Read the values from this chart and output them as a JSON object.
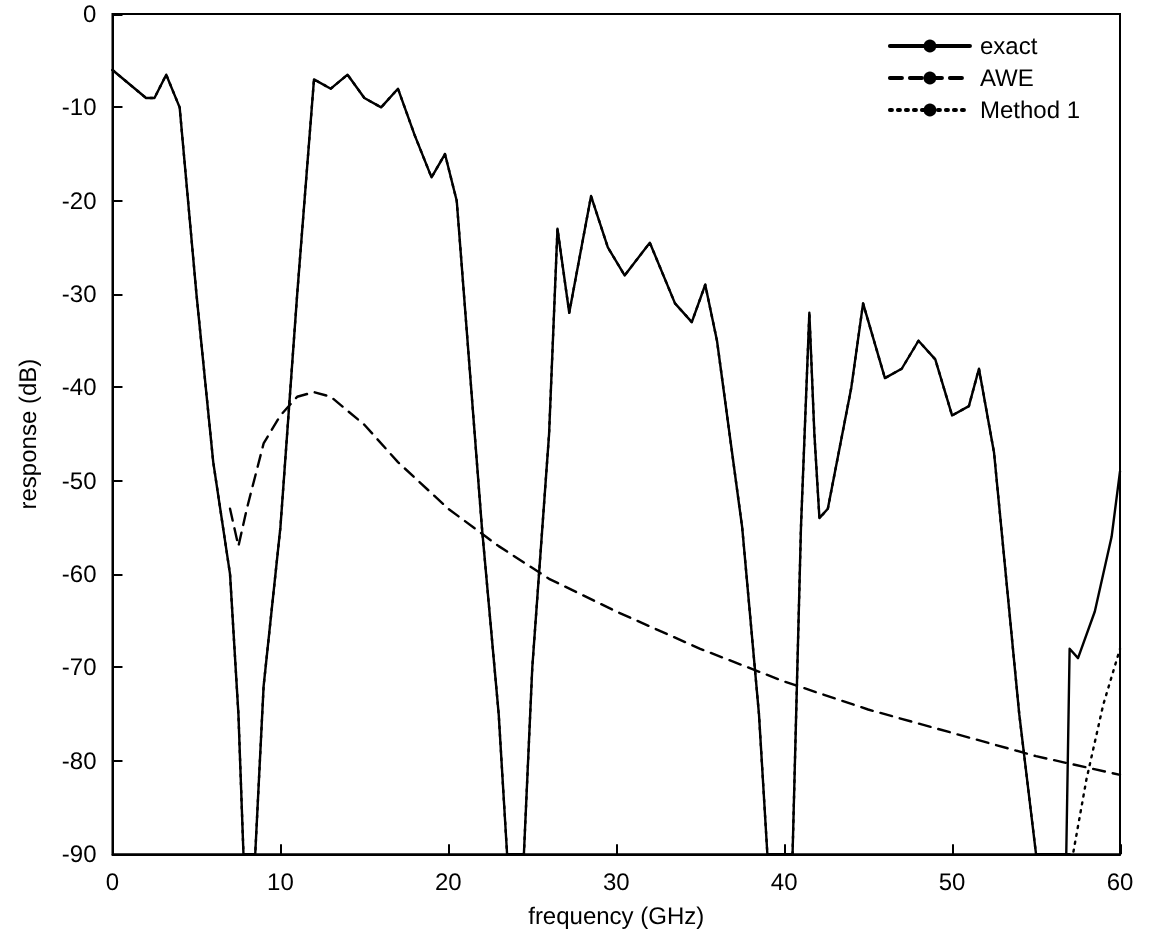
{
  "chart_data": {
    "type": "line",
    "xlabel": "frequency (GHz)",
    "ylabel": "response (dB)",
    "xlim": [
      0,
      60
    ],
    "ylim": [
      -90,
      0
    ],
    "xticks": [
      0,
      10,
      20,
      30,
      40,
      50,
      60
    ],
    "yticks": [
      -90,
      -80,
      -70,
      -60,
      -50,
      -40,
      -30,
      -20,
      -10,
      0
    ],
    "grid": false,
    "legend": "top right",
    "marker": "none",
    "series": [
      {
        "name": "Method 1",
        "color": "#000000",
        "line_style": "dotted",
        "x": [
          0,
          1,
          2,
          2.5,
          3.2,
          4,
          5,
          6,
          7,
          7.5,
          7.8,
          8.5,
          9,
          10,
          11,
          12,
          13,
          14,
          15,
          16,
          17,
          18,
          19,
          19.8,
          20.5,
          22,
          23,
          23.5,
          24.5,
          25,
          26,
          26.5,
          27.2,
          28.5,
          29.5,
          30.5,
          32,
          33.5,
          34.5,
          35.3,
          36,
          37.5,
          38.5,
          39,
          40.5,
          41,
          41.5,
          41.8,
          42.1,
          42.6,
          44,
          44.7,
          46,
          47,
          48,
          49,
          50,
          51,
          51.6,
          52.5,
          54,
          55,
          57.2,
          58,
          59,
          60
        ],
        "values": [
          -6,
          -7.5,
          -9,
          -9,
          -6.5,
          -10,
          -30,
          -48,
          -60,
          -75,
          -90,
          -90,
          -72,
          -55,
          -30,
          -7,
          -8,
          -6.5,
          -9,
          -10,
          -8,
          -13,
          -17.5,
          -15,
          -20,
          -55,
          -75,
          -90,
          -90,
          -70,
          -45,
          -23,
          -32,
          -19.5,
          -25,
          -28,
          -24.5,
          -31,
          -33,
          -29,
          -35,
          -55,
          -75,
          -90,
          -90,
          -55,
          -32,
          -45,
          -54,
          -53,
          -40,
          -31,
          -39,
          -38,
          -35,
          -37,
          -43,
          -42,
          -38,
          -47,
          -75,
          -90,
          -90,
          -82,
          -74,
          -68
        ]
      },
      {
        "name": "AWE",
        "color": "#000000",
        "line_style": "dashed",
        "x": [
          7,
          7.5,
          8,
          9,
          10,
          11,
          12,
          13,
          15,
          17,
          20,
          23,
          26,
          30,
          35,
          40,
          45,
          50,
          55,
          60
        ],
        "values": [
          -53,
          -57,
          -53,
          -46,
          -43,
          -41,
          -40.5,
          -41,
          -44,
          -48,
          -53,
          -57,
          -60.5,
          -64,
          -68,
          -71.5,
          -74.5,
          -77,
          -79.5,
          -81.5
        ]
      },
      {
        "name": "exact",
        "color": "#000000",
        "line_style": "solid",
        "x": [
          0,
          1,
          2,
          2.5,
          3.2,
          4,
          5,
          6,
          7,
          7.5,
          7.8,
          8.5,
          9,
          10,
          11,
          12,
          13,
          14,
          15,
          16,
          17,
          18,
          19,
          19.8,
          20.5,
          22,
          23,
          23.5,
          24.5,
          25,
          26,
          26.5,
          27.2,
          28.5,
          29.5,
          30.5,
          32,
          33.5,
          34.5,
          35.3,
          36,
          37.5,
          38.5,
          39,
          40.5,
          41,
          41.5,
          41.8,
          42.1,
          42.6,
          44,
          44.7,
          46,
          47,
          48,
          49,
          50,
          51,
          51.6,
          52.5,
          54,
          55,
          56.8,
          57,
          57.5,
          58.5,
          59.5,
          60
        ],
        "values": [
          -6,
          -7.5,
          -9,
          -9,
          -6.5,
          -10,
          -30,
          -48,
          -60,
          -75,
          -90,
          -90,
          -72,
          -55,
          -30,
          -7,
          -8,
          -6.5,
          -9,
          -10,
          -8,
          -13,
          -17.5,
          -15,
          -20,
          -55,
          -75,
          -90,
          -90,
          -70,
          -45,
          -23,
          -32,
          -19.5,
          -25,
          -28,
          -24.5,
          -31,
          -33,
          -29,
          -35,
          -55,
          -75,
          -90,
          -90,
          -55,
          -32,
          -45,
          -54,
          -53,
          -40,
          -31,
          -39,
          -38,
          -35,
          -37,
          -43,
          -42,
          -38,
          -47,
          -75,
          -90,
          -90,
          -68,
          -69,
          -64,
          -56,
          -49
        ]
      }
    ]
  }
}
